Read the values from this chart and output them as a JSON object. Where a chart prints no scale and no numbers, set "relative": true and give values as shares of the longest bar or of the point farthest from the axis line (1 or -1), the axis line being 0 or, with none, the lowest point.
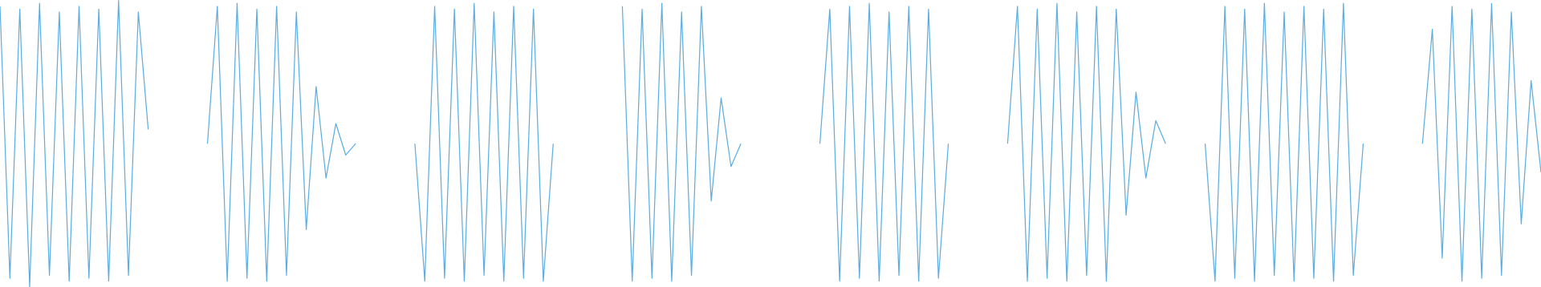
{
  "chart_data": {
    "type": "line",
    "relative": true,
    "categories": [
      null,
      null,
      null,
      null,
      null,
      null,
      null,
      null,
      null,
      null,
      null,
      null,
      null,
      null,
      null,
      null,
      null,
      null,
      null,
      null,
      null,
      null,
      null,
      null,
      null,
      null,
      null,
      null,
      null,
      null,
      null,
      null,
      null,
      null,
      null,
      null,
      null,
      null,
      null,
      null,
      null,
      null,
      null,
      null,
      null,
      null,
      null,
      null,
      null,
      null,
      null,
      null,
      null,
      null,
      null,
      null,
      null,
      null,
      null,
      null,
      null,
      null,
      null,
      null,
      null,
      null,
      null,
      null,
      null,
      null,
      null,
      null,
      null,
      null,
      null,
      null,
      null,
      null,
      null,
      null,
      null,
      null,
      null,
      null,
      null,
      null,
      null,
      null,
      null,
      null,
      null,
      null,
      null,
      null,
      null,
      null,
      null,
      null,
      null,
      null,
      null,
      null,
      null,
      null,
      null,
      null,
      null,
      null,
      null,
      null,
      null,
      null,
      null,
      null,
      null,
      null,
      null,
      null,
      null,
      null,
      null,
      null,
      null,
      null,
      null,
      null,
      null,
      null,
      null,
      null,
      null,
      null,
      null,
      null,
      null,
      null,
      null,
      null,
      null,
      null,
      null,
      null,
      null,
      null,
      null,
      null,
      null,
      null,
      null,
      null,
      null,
      null,
      null,
      null,
      null,
      null,
      null
    ],
    "series": [
      {
        "color": "#5dade2",
        "values": [
          0.98,
          0.03,
          0.97,
          0,
          0.99,
          0.04,
          0.96,
          0.02,
          0.98,
          0.03,
          0.97,
          0.02,
          1,
          0.04,
          0.96,
          0.55,
          null,
          null,
          null,
          null,
          null,
          null,
          null,
          null,
          null,
          null,
          null,
          null,
          null,
          null,
          null,
          null,
          null,
          null,
          null,
          null,
          null,
          null,
          null,
          null,
          null,
          null,
          null,
          null,
          null,
          null,
          null,
          null,
          null,
          null,
          null,
          null,
          null,
          null,
          null,
          null,
          null,
          null,
          null,
          null,
          null,
          null,
          null,
          null,
          null,
          null,
          null,
          null,
          null,
          null,
          null,
          null,
          null,
          null,
          null,
          null,
          null,
          null,
          null,
          null,
          null,
          null,
          null,
          null,
          null,
          null,
          null,
          null,
          null,
          null,
          null,
          null,
          null,
          null,
          null,
          null,
          null,
          null,
          null,
          null,
          null,
          null,
          null,
          null,
          null,
          null,
          null,
          null,
          null,
          null,
          null,
          null,
          null,
          null,
          null,
          null,
          null,
          null,
          null,
          null,
          null,
          null,
          null,
          null,
          null,
          null,
          null,
          null,
          null,
          null,
          null,
          null,
          null,
          null,
          null,
          null,
          null,
          null,
          null,
          null,
          null,
          null,
          null,
          null,
          null,
          null,
          null,
          null,
          null,
          null,
          null,
          null,
          null,
          null,
          null,
          null,
          null
        ]
      },
      {
        "color": "#5dade2",
        "values": [
          null,
          null,
          null,
          null,
          null,
          null,
          null,
          null,
          null,
          null,
          null,
          null,
          null,
          null,
          null,
          null,
          null,
          null,
          null,
          null,
          null,
          0.5,
          0.98,
          0.02,
          0.99,
          0.03,
          0.97,
          0.02,
          0.98,
          0.04,
          0.96,
          0.2,
          0.7,
          0.38,
          0.57,
          0.46,
          0.5,
          null,
          null,
          null,
          null,
          null,
          null,
          null,
          null,
          null,
          null,
          null,
          null,
          null,
          null,
          null,
          null,
          null,
          null,
          null,
          null,
          null,
          null,
          null,
          null,
          null,
          null,
          null,
          null,
          null,
          null,
          null,
          null,
          null,
          null,
          null,
          null,
          null,
          null,
          null,
          null,
          null,
          null,
          null,
          null,
          null,
          null,
          null,
          null,
          null,
          null,
          null,
          null,
          null,
          null,
          null,
          null,
          null,
          null,
          null,
          null,
          null,
          null,
          null,
          null,
          null,
          null,
          null,
          null,
          null,
          null,
          null,
          null,
          null,
          null,
          null,
          null,
          null,
          null,
          null,
          null,
          null,
          null,
          null,
          null,
          null,
          null,
          null,
          null,
          null,
          null,
          null,
          null,
          null,
          null,
          null,
          null,
          null,
          null,
          null,
          null,
          null,
          null,
          null,
          null,
          null,
          null,
          null,
          null,
          null,
          null,
          null,
          null,
          null,
          null,
          null,
          null,
          null,
          null,
          null,
          null
        ]
      },
      {
        "color": "#5dade2",
        "values": [
          null,
          null,
          null,
          null,
          null,
          null,
          null,
          null,
          null,
          null,
          null,
          null,
          null,
          null,
          null,
          null,
          null,
          null,
          null,
          null,
          null,
          null,
          null,
          null,
          null,
          null,
          null,
          null,
          null,
          null,
          null,
          null,
          null,
          null,
          null,
          null,
          null,
          null,
          null,
          null,
          null,
          null,
          0.5,
          0.02,
          0.98,
          0.03,
          0.97,
          0.02,
          0.99,
          0.04,
          0.96,
          0.02,
          0.98,
          0.03,
          0.97,
          0.02,
          0.5,
          null,
          null,
          null,
          null,
          null,
          null,
          null,
          null,
          null,
          null,
          null,
          null,
          null,
          null,
          null,
          null,
          null,
          null,
          null,
          null,
          null,
          null,
          null,
          null,
          null,
          null,
          null,
          null,
          null,
          null,
          null,
          null,
          null,
          null,
          null,
          null,
          null,
          null,
          null,
          null,
          null,
          null,
          null,
          null,
          null,
          null,
          null,
          null,
          null,
          null,
          null,
          null,
          null,
          null,
          null,
          null,
          null,
          null,
          null,
          null,
          null,
          null,
          null,
          null,
          null,
          null,
          null,
          null,
          null,
          null,
          null,
          null,
          null,
          null,
          null,
          null,
          null,
          null,
          null,
          null,
          null,
          null,
          null,
          null,
          null,
          null,
          null,
          null,
          null,
          null,
          null,
          null,
          null,
          null,
          null,
          null,
          null,
          null,
          null,
          null
        ]
      },
      {
        "color": "#5dade2",
        "values": [
          null,
          null,
          null,
          null,
          null,
          null,
          null,
          null,
          null,
          null,
          null,
          null,
          null,
          null,
          null,
          null,
          null,
          null,
          null,
          null,
          null,
          null,
          null,
          null,
          null,
          null,
          null,
          null,
          null,
          null,
          null,
          null,
          null,
          null,
          null,
          null,
          null,
          null,
          null,
          null,
          null,
          null,
          null,
          null,
          null,
          null,
          null,
          null,
          null,
          null,
          null,
          null,
          null,
          null,
          null,
          null,
          null,
          null,
          null,
          null,
          null,
          null,
          null,
          0.98,
          0.02,
          0.97,
          0.03,
          0.99,
          0.02,
          0.96,
          0.04,
          0.98,
          0.3,
          0.66,
          0.42,
          0.5,
          null,
          null,
          null,
          null,
          null,
          null,
          null,
          null,
          null,
          null,
          null,
          null,
          null,
          null,
          null,
          null,
          null,
          null,
          null,
          null,
          null,
          null,
          null,
          null,
          null,
          null,
          null,
          null,
          null,
          null,
          null,
          null,
          null,
          null,
          null,
          null,
          null,
          null,
          null,
          null,
          null,
          null,
          null,
          null,
          null,
          null,
          null,
          null,
          null,
          null,
          null,
          null,
          null,
          null,
          null,
          null,
          null,
          null,
          null,
          null,
          null,
          null,
          null,
          null,
          null,
          null,
          null,
          null,
          null,
          null,
          null,
          null,
          null,
          null,
          null,
          null,
          null,
          null,
          null,
          null,
          null
        ]
      },
      {
        "color": "#5dade2",
        "values": [
          null,
          null,
          null,
          null,
          null,
          null,
          null,
          null,
          null,
          null,
          null,
          null,
          null,
          null,
          null,
          null,
          null,
          null,
          null,
          null,
          null,
          null,
          null,
          null,
          null,
          null,
          null,
          null,
          null,
          null,
          null,
          null,
          null,
          null,
          null,
          null,
          null,
          null,
          null,
          null,
          null,
          null,
          null,
          null,
          null,
          null,
          null,
          null,
          null,
          null,
          null,
          null,
          null,
          null,
          null,
          null,
          null,
          null,
          null,
          null,
          null,
          null,
          null,
          null,
          null,
          null,
          null,
          null,
          null,
          null,
          null,
          null,
          null,
          null,
          null,
          null,
          null,
          null,
          null,
          null,
          null,
          null,
          null,
          0.5,
          0.97,
          0.02,
          0.98,
          0.03,
          0.99,
          0.02,
          0.96,
          0.04,
          0.98,
          0.02,
          0.97,
          0.03,
          0.5,
          null,
          null,
          null,
          null,
          null,
          null,
          null,
          null,
          null,
          null,
          null,
          null,
          null,
          null,
          null,
          null,
          null,
          null,
          null,
          null,
          null,
          null,
          null,
          null,
          null,
          null,
          null,
          null,
          null,
          null,
          null,
          null,
          null,
          null,
          null,
          null,
          null,
          null,
          null,
          null,
          null,
          null,
          null,
          null,
          null,
          null,
          null,
          null,
          null,
          null,
          null,
          null,
          null,
          null,
          null,
          null,
          null,
          null,
          null,
          null
        ]
      },
      {
        "color": "#5dade2",
        "values": [
          null,
          null,
          null,
          null,
          null,
          null,
          null,
          null,
          null,
          null,
          null,
          null,
          null,
          null,
          null,
          null,
          null,
          null,
          null,
          null,
          null,
          null,
          null,
          null,
          null,
          null,
          null,
          null,
          null,
          null,
          null,
          null,
          null,
          null,
          null,
          null,
          null,
          null,
          null,
          null,
          null,
          null,
          null,
          null,
          null,
          null,
          null,
          null,
          null,
          null,
          null,
          null,
          null,
          null,
          null,
          null,
          null,
          null,
          null,
          null,
          null,
          null,
          null,
          null,
          null,
          null,
          null,
          null,
          null,
          null,
          null,
          null,
          null,
          null,
          null,
          null,
          null,
          null,
          null,
          null,
          null,
          null,
          null,
          null,
          null,
          null,
          null,
          null,
          null,
          null,
          null,
          null,
          null,
          null,
          null,
          null,
          null,
          null,
          null,
          null,
          null,
          null,
          0.5,
          0.98,
          0.02,
          0.97,
          0.03,
          0.99,
          0.02,
          0.96,
          0.04,
          0.98,
          0.02,
          0.97,
          0.25,
          0.68,
          0.38,
          0.58,
          0.5,
          null,
          null,
          null,
          null,
          null,
          null,
          null,
          null,
          null,
          null,
          null,
          null,
          null,
          null,
          null,
          null,
          null,
          null,
          null,
          null,
          null,
          null,
          null,
          null,
          null,
          null,
          null,
          null,
          null,
          null,
          null,
          null,
          null,
          null,
          null,
          null,
          null,
          null
        ]
      },
      {
        "color": "#5dade2",
        "values": [
          null,
          null,
          null,
          null,
          null,
          null,
          null,
          null,
          null,
          null,
          null,
          null,
          null,
          null,
          null,
          null,
          null,
          null,
          null,
          null,
          null,
          null,
          null,
          null,
          null,
          null,
          null,
          null,
          null,
          null,
          null,
          null,
          null,
          null,
          null,
          null,
          null,
          null,
          null,
          null,
          null,
          null,
          null,
          null,
          null,
          null,
          null,
          null,
          null,
          null,
          null,
          null,
          null,
          null,
          null,
          null,
          null,
          null,
          null,
          null,
          null,
          null,
          null,
          null,
          null,
          null,
          null,
          null,
          null,
          null,
          null,
          null,
          null,
          null,
          null,
          null,
          null,
          null,
          null,
          null,
          null,
          null,
          null,
          null,
          null,
          null,
          null,
          null,
          null,
          null,
          null,
          null,
          null,
          null,
          null,
          null,
          null,
          null,
          null,
          null,
          null,
          null,
          null,
          null,
          null,
          null,
          null,
          null,
          null,
          null,
          null,
          null,
          null,
          null,
          null,
          null,
          null,
          null,
          null,
          null,
          null,
          null,
          0.5,
          0.02,
          0.98,
          0.03,
          0.97,
          0.02,
          0.99,
          0.04,
          0.96,
          0.02,
          0.98,
          0.03,
          0.97,
          0.02,
          0.99,
          0.04,
          0.5,
          null,
          null,
          null,
          null,
          null,
          null,
          null,
          null,
          null,
          null,
          null,
          null,
          null,
          null,
          null,
          null,
          null,
          null
        ]
      },
      {
        "color": "#5dade2",
        "values": [
          null,
          null,
          null,
          null,
          null,
          null,
          null,
          null,
          null,
          null,
          null,
          null,
          null,
          null,
          null,
          null,
          null,
          null,
          null,
          null,
          null,
          null,
          null,
          null,
          null,
          null,
          null,
          null,
          null,
          null,
          null,
          null,
          null,
          null,
          null,
          null,
          null,
          null,
          null,
          null,
          null,
          null,
          null,
          null,
          null,
          null,
          null,
          null,
          null,
          null,
          null,
          null,
          null,
          null,
          null,
          null,
          null,
          null,
          null,
          null,
          null,
          null,
          null,
          null,
          null,
          null,
          null,
          null,
          null,
          null,
          null,
          null,
          null,
          null,
          null,
          null,
          null,
          null,
          null,
          null,
          null,
          null,
          null,
          null,
          null,
          null,
          null,
          null,
          null,
          null,
          null,
          null,
          null,
          null,
          null,
          null,
          null,
          null,
          null,
          null,
          null,
          null,
          null,
          null,
          null,
          null,
          null,
          null,
          null,
          null,
          null,
          null,
          null,
          null,
          null,
          null,
          null,
          null,
          null,
          null,
          null,
          null,
          null,
          null,
          null,
          null,
          null,
          null,
          null,
          null,
          null,
          null,
          null,
          null,
          null,
          null,
          null,
          null,
          null,
          null,
          null,
          null,
          null,
          null,
          0.5,
          0.9,
          0.1,
          0.98,
          0.02,
          0.97,
          0.03,
          0.99,
          0.04,
          0.96,
          0.22,
          0.72,
          0.4
        ]
      }
    ]
  }
}
